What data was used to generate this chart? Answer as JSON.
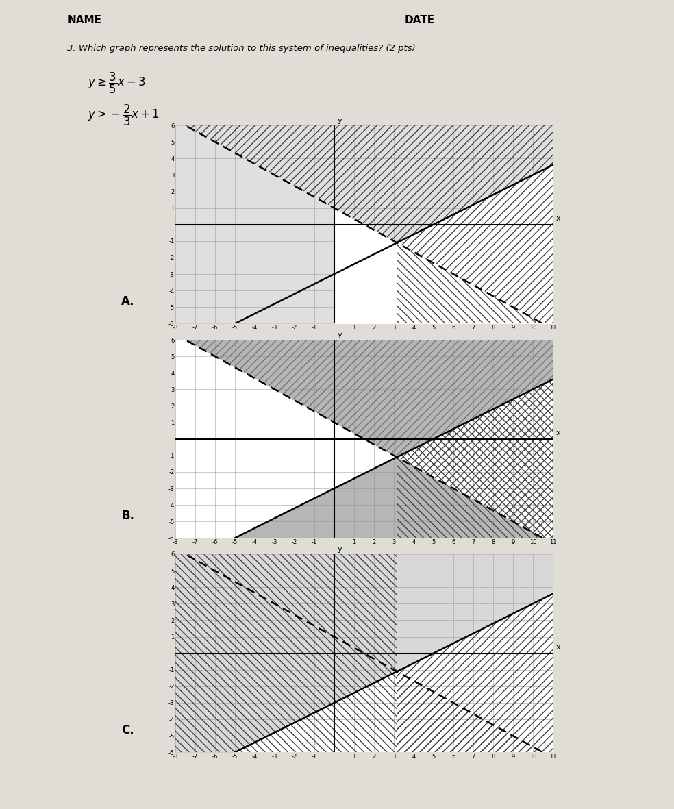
{
  "slope1": 0.6,
  "intercept1": -3,
  "slope2": -0.66667,
  "intercept2": 1,
  "xlim": [
    -8,
    11
  ],
  "ylim": [
    -6,
    6
  ],
  "page_bg": "#e0ddd6",
  "graph_bg": "#ffffff",
  "gray_fill": "#b8b8b8",
  "gray_dark": "#909090",
  "hatch_ec": "#404040"
}
